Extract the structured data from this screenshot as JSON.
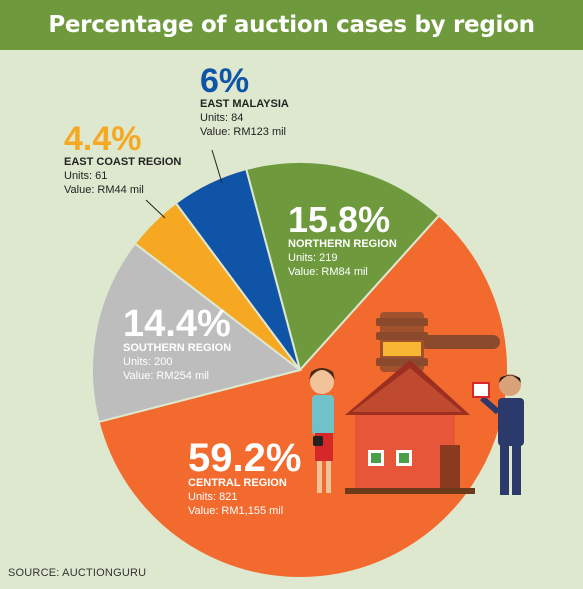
{
  "title": "Percentage of auction cases by region",
  "source": "SOURCE: AUCTIONGURU",
  "chart_data": {
    "type": "pie",
    "title": "Percentage of auction cases by region",
    "slices": [
      {
        "region": "NORTHERN REGION",
        "percent": 15.8,
        "percent_label": "15.8%",
        "units": "Units: 219",
        "value": "Value: RM84 mil",
        "color": "#6e9a3d"
      },
      {
        "region": "CENTRAL REGION",
        "percent": 59.2,
        "percent_label": "59.2%",
        "units": "Units: 821",
        "value": "Value: RM1,155 mil",
        "color": "#f26a2e"
      },
      {
        "region": "SOUTHERN REGION",
        "percent": 14.4,
        "percent_label": "14.4%",
        "units": "Units: 200",
        "value": "Value: RM254 mil",
        "color": "#bdbdbd"
      },
      {
        "region": "EAST COAST REGION",
        "percent": 4.4,
        "percent_label": "4.4%",
        "units": "Units: 61",
        "value": "Value: RM44 mil",
        "color": "#f7a823"
      },
      {
        "region": "EAST MALAYSIA",
        "percent": 6,
        "percent_label": "6%",
        "units": "Units: 84",
        "value": "Value: RM123 mil",
        "color": "#1054a8"
      }
    ]
  }
}
